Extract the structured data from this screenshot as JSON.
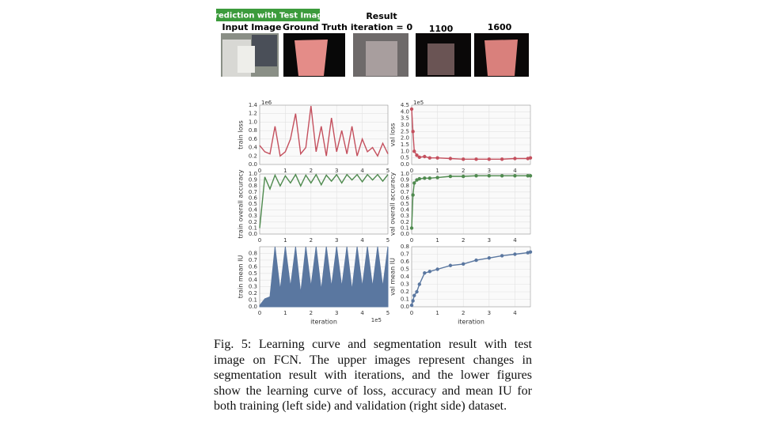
{
  "figure": {
    "label": "Prediction with Test Image",
    "image_titles": [
      "Input Image",
      "Ground Truth"
    ],
    "result_title": [
      "Result",
      "iteration = 0"
    ],
    "iteration_titles": [
      "1100",
      "1600"
    ]
  },
  "chart_data": [
    {
      "type": "line",
      "ylabel": "train loss",
      "offset_text": "1e6",
      "color": "#c4505e",
      "x": [
        0,
        0.2,
        0.4,
        0.6,
        0.8,
        1,
        1.2,
        1.4,
        1.6,
        1.8,
        2,
        2.2,
        2.4,
        2.6,
        2.8,
        3,
        3.2,
        3.4,
        3.6,
        3.8,
        4,
        4.2,
        4.4,
        4.6,
        4.8,
        5
      ],
      "values": [
        0.45,
        0.3,
        0.25,
        0.9,
        0.2,
        0.3,
        0.6,
        1.2,
        0.25,
        0.4,
        1.38,
        0.3,
        0.9,
        0.2,
        1.1,
        0.3,
        0.8,
        0.25,
        0.9,
        0.2,
        0.6,
        0.3,
        0.4,
        0.2,
        0.5,
        0.25
      ],
      "xlim": [
        0,
        5
      ],
      "xticks": [
        0,
        1,
        2,
        3,
        4,
        5
      ],
      "ylim": [
        0,
        1.4
      ],
      "yticks": [
        {
          "value": 0,
          "label": "0.0"
        },
        0.2,
        0.4,
        0.6,
        0.8,
        {
          "value": 1,
          "label": "1.0"
        },
        1.2,
        1.4
      ],
      "grid": true
    },
    {
      "type": "line",
      "ylabel": "val loss",
      "offset_text": "1e5",
      "color": "#c4505e",
      "markers": true,
      "x": [
        0,
        0.05,
        0.1,
        0.2,
        0.3,
        0.5,
        0.7,
        1,
        1.5,
        2,
        2.5,
        3,
        3.5,
        4,
        4.5,
        4.6
      ],
      "values": [
        4.2,
        2.5,
        1.0,
        0.7,
        0.55,
        0.6,
        0.5,
        0.5,
        0.45,
        0.4,
        0.4,
        0.4,
        0.4,
        0.45,
        0.45,
        0.5
      ],
      "xlim": [
        0,
        4.6
      ],
      "xticks": [
        0,
        1,
        2,
        3,
        4
      ],
      "ylim": [
        0,
        4.5
      ],
      "yticks": [
        {
          "value": 0,
          "label": "0.0"
        },
        0.5,
        {
          "value": 1,
          "label": "1.0"
        },
        1.5,
        {
          "value": 2,
          "label": "2.0"
        },
        2.5,
        {
          "value": 3,
          "label": "3.0"
        },
        3.5,
        {
          "value": 4,
          "label": "4.0"
        },
        4.5
      ],
      "grid": true
    },
    {
      "type": "line",
      "ylabel": "train overall accuracy",
      "color": "#4e8a4e",
      "x": [
        0,
        0.2,
        0.4,
        0.6,
        0.8,
        1,
        1.2,
        1.4,
        1.6,
        1.8,
        2,
        2.2,
        2.4,
        2.6,
        2.8,
        3,
        3.2,
        3.4,
        3.6,
        3.8,
        4,
        4.2,
        4.4,
        4.6,
        4.8,
        5
      ],
      "values": [
        0.1,
        0.95,
        0.75,
        0.98,
        0.8,
        0.97,
        0.85,
        0.99,
        0.8,
        0.98,
        0.85,
        0.99,
        0.82,
        0.98,
        0.88,
        0.99,
        0.85,
        0.99,
        0.9,
        0.99,
        0.87,
        0.99,
        0.9,
        0.99,
        0.88,
        0.99
      ],
      "xlim": [
        0,
        5
      ],
      "xticks": [
        0,
        1,
        2,
        3,
        4,
        5
      ],
      "ylim": [
        0,
        1
      ],
      "yticks": [
        {
          "value": 0,
          "label": "0.0"
        },
        0.1,
        0.2,
        0.3,
        0.4,
        0.5,
        0.6,
        0.7,
        0.8,
        0.9,
        {
          "value": 1,
          "label": "1.0"
        }
      ],
      "grid": true
    },
    {
      "type": "line",
      "ylabel": "val overall accuracy",
      "color": "#4e8a4e",
      "markers": true,
      "x": [
        0,
        0.05,
        0.1,
        0.2,
        0.3,
        0.5,
        0.7,
        1,
        1.5,
        2,
        2.5,
        3,
        3.5,
        4,
        4.5,
        4.6
      ],
      "values": [
        0.1,
        0.65,
        0.85,
        0.9,
        0.92,
        0.93,
        0.93,
        0.94,
        0.96,
        0.96,
        0.97,
        0.97,
        0.97,
        0.97,
        0.97,
        0.97
      ],
      "xlim": [
        0,
        4.6
      ],
      "xticks": [
        0,
        1,
        2,
        3,
        4
      ],
      "ylim": [
        0,
        1
      ],
      "yticks": [
        {
          "value": 0,
          "label": "0.0"
        },
        0.1,
        0.2,
        0.3,
        0.4,
        0.5,
        0.6,
        0.7,
        0.8,
        0.9,
        {
          "value": 1,
          "label": "1.0"
        }
      ],
      "grid": true
    },
    {
      "type": "area",
      "ylabel": "train mean IU",
      "xlabel": "iteration",
      "offset_text": "1e5",
      "color": "#5a77a0",
      "x": [
        0,
        0.2,
        0.4,
        0.6,
        0.8,
        1,
        1.2,
        1.4,
        1.6,
        1.8,
        2,
        2.2,
        2.4,
        2.6,
        2.8,
        3,
        3.2,
        3.4,
        3.6,
        3.8,
        4,
        4.2,
        4.4,
        4.6,
        4.8,
        5
      ],
      "values": [
        0.02,
        0.12,
        0.15,
        0.9,
        0.25,
        0.9,
        0.3,
        0.9,
        0.2,
        0.9,
        0.3,
        0.9,
        0.25,
        0.9,
        0.3,
        0.9,
        0.3,
        0.9,
        0.25,
        0.9,
        0.3,
        0.9,
        0.3,
        0.9,
        0.3,
        0.9
      ],
      "xlim": [
        0,
        5
      ],
      "xticks": [
        0,
        1,
        2,
        3,
        4,
        5
      ],
      "ylim": [
        0,
        0.9
      ],
      "yticks": [
        {
          "value": 0,
          "label": "0.0"
        },
        0.1,
        0.2,
        0.3,
        0.4,
        0.5,
        0.6,
        0.7,
        0.8
      ],
      "grid": true
    },
    {
      "type": "line",
      "ylabel": "val mean IU",
      "xlabel": "iteration",
      "color": "#5a77a0",
      "markers": true,
      "x": [
        0,
        0.05,
        0.1,
        0.2,
        0.3,
        0.5,
        0.7,
        1,
        1.5,
        2,
        2.5,
        3,
        3.5,
        4,
        4.5,
        4.6
      ],
      "values": [
        0.02,
        0.08,
        0.15,
        0.2,
        0.3,
        0.45,
        0.47,
        0.5,
        0.55,
        0.57,
        0.62,
        0.65,
        0.68,
        0.7,
        0.72,
        0.73
      ],
      "xlim": [
        0,
        4.6
      ],
      "xticks": [
        0,
        1,
        2,
        3,
        4
      ],
      "ylim": [
        0,
        0.8
      ],
      "yticks": [
        {
          "value": 0,
          "label": "0.0"
        },
        0.1,
        0.2,
        0.3,
        0.4,
        0.5,
        0.6,
        0.7,
        0.8
      ],
      "grid": true
    }
  ],
  "caption": {
    "lines": [
      "Fig. 5: Learning curve and segmentation result with test",
      "image on FCN. The upper images represent changes in",
      "segmentation result with iterations, and the lower figures",
      "show the learning curve of loss, accuracy and mean IU for",
      "both training (left side) and validation (right side) dataset."
    ]
  }
}
